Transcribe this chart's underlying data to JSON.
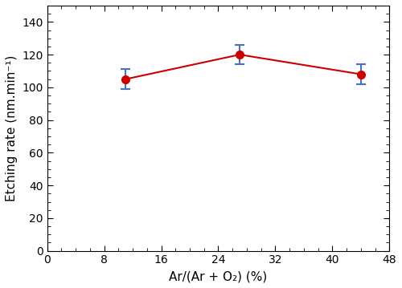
{
  "x": [
    11,
    27,
    44
  ],
  "y": [
    105,
    120,
    108
  ],
  "yerr": [
    6,
    6,
    6
  ],
  "line_color": "#cc0000",
  "marker_color": "#cc0000",
  "errorbar_color": "#4472c4",
  "marker": "o",
  "marker_size": 7,
  "linewidth": 1.5,
  "xlabel": "Ar/(Ar + O₂) (%)",
  "ylabel": "Etching rate (nm.min⁻¹)",
  "xlim": [
    0,
    48
  ],
  "ylim": [
    0,
    150
  ],
  "xticks": [
    0,
    8,
    16,
    24,
    32,
    40,
    48
  ],
  "yticks": [
    0,
    20,
    40,
    60,
    80,
    100,
    120,
    140
  ],
  "xlabel_fontsize": 11,
  "ylabel_fontsize": 11,
  "tick_fontsize": 10,
  "background_color": "#ffffff",
  "fig_background_color": "#ffffff"
}
